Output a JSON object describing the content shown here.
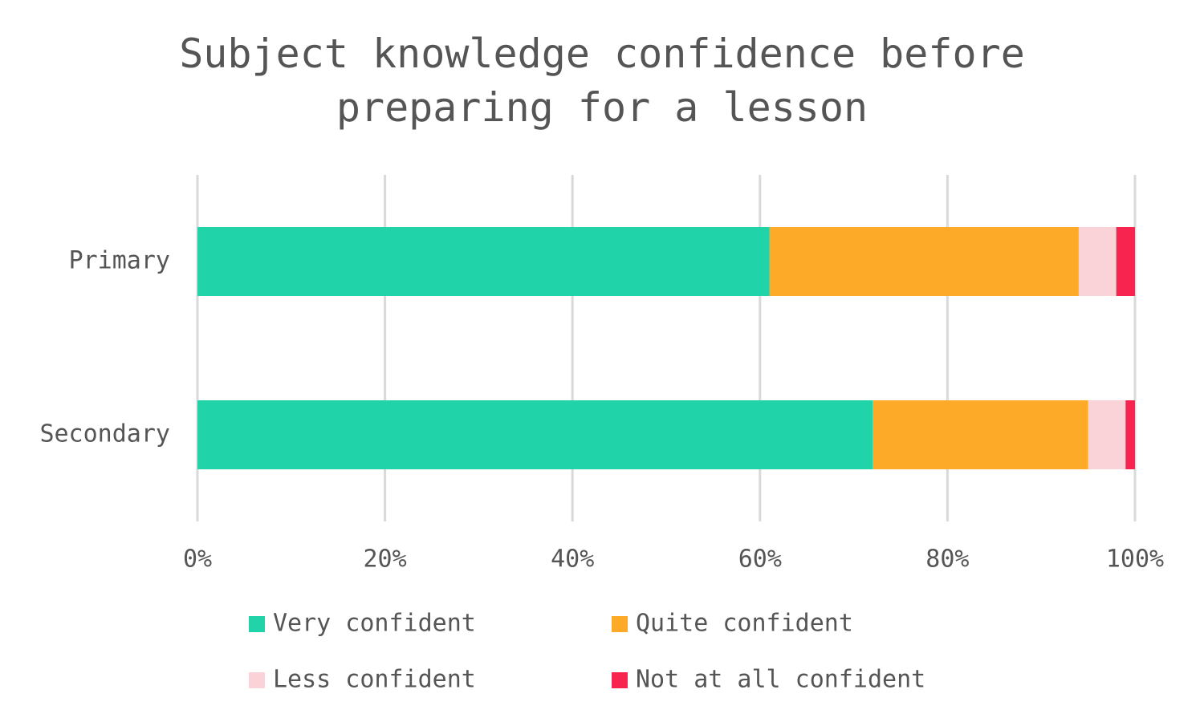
{
  "chart_data": {
    "type": "stacked-bar-horizontal",
    "title": "Subject knowledge confidence before preparing for a lesson",
    "categories": [
      "Primary",
      "Secondary"
    ],
    "series": [
      {
        "name": "Very confident",
        "color": "#20d3a8",
        "values": [
          61,
          72
        ]
      },
      {
        "name": "Quite confident",
        "color": "#fcaa28",
        "values": [
          33,
          23
        ]
      },
      {
        "name": "Less confident",
        "color": "#fad3d9",
        "values": [
          4,
          4
        ]
      },
      {
        "name": "Not at all confident",
        "color": "#f7244f",
        "values": [
          2,
          1
        ]
      }
    ],
    "xlim": [
      0,
      100
    ],
    "xticks": [
      {
        "value": 0,
        "label": "0%"
      },
      {
        "value": 20,
        "label": "20%"
      },
      {
        "value": 40,
        "label": "40%"
      },
      {
        "value": 60,
        "label": "60%"
      },
      {
        "value": 80,
        "label": "80%"
      },
      {
        "value": 100,
        "label": "100%"
      }
    ],
    "grid": true
  }
}
